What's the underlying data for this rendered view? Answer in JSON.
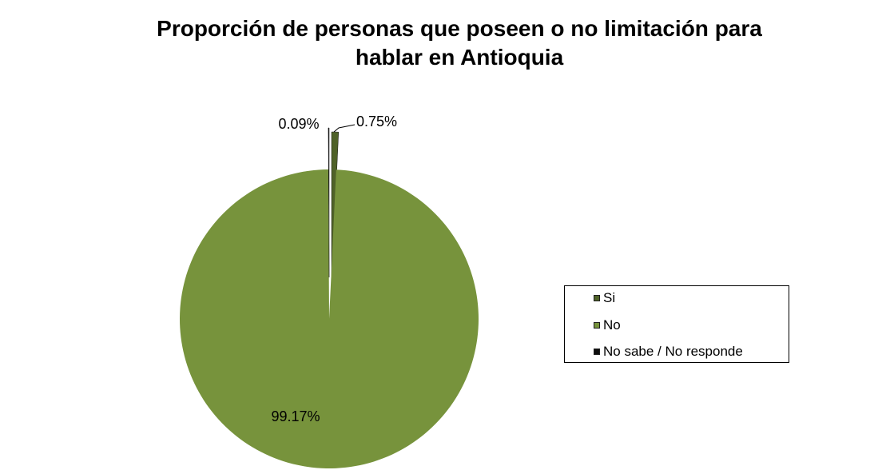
{
  "chart_data": {
    "type": "pie",
    "title_lines": [
      "Proporción de personas que poseen o no limitación para",
      "hablar en Antioquia"
    ],
    "categories": [
      "Si",
      "No",
      "No sabe / No responde"
    ],
    "values": [
      0.75,
      99.17,
      0.09
    ],
    "data_labels": [
      "0.75%",
      "99.17%",
      "0.09%"
    ],
    "colors": [
      "#4f6228",
      "#77933c",
      "#0d0d0d"
    ],
    "legend_position": "right"
  }
}
